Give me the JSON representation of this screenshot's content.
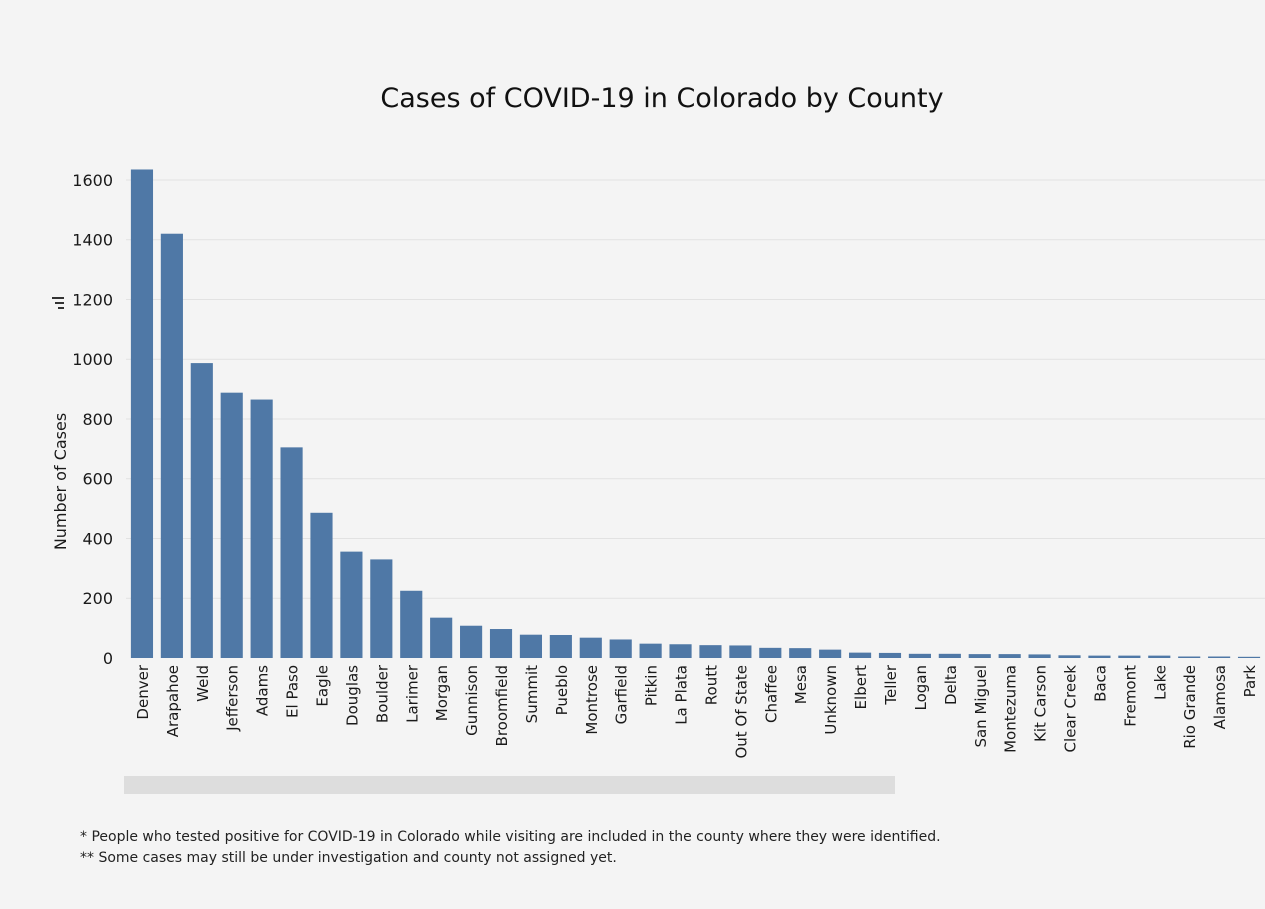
{
  "chart_data": {
    "type": "bar",
    "title": "Cases of COVID-19 in Colorado by County",
    "xlabel": "",
    "ylabel": "Number of Cases",
    "ylim": [
      0,
      1650
    ],
    "yticks": [
      0,
      200,
      400,
      600,
      800,
      1000,
      1200,
      1400,
      1600
    ],
    "grid": true,
    "bar_color": "#4f78a6",
    "categories": [
      "Denver",
      "Arapahoe",
      "Weld",
      "Jefferson",
      "Adams",
      "El Paso",
      "Eagle",
      "Douglas",
      "Boulder",
      "Larimer",
      "Morgan",
      "Gunnison",
      "Broomfield",
      "Summit",
      "Pueblo",
      "Montrose",
      "Garfield",
      "Pitkin",
      "La Plata",
      "Routt",
      "Out Of State",
      "Chaffee",
      "Mesa",
      "Unknown",
      "Elbert",
      "Teller",
      "Logan",
      "Delta",
      "San Miguel",
      "Montezuma",
      "Kit Carson",
      "Clear Creek",
      "Baca",
      "Fremont",
      "Lake",
      "Rio Grande",
      "Alamosa",
      "Park"
    ],
    "values": [
      1635,
      1420,
      987,
      888,
      865,
      705,
      486,
      356,
      330,
      225,
      135,
      108,
      97,
      78,
      77,
      68,
      62,
      48,
      46,
      43,
      42,
      34,
      33,
      28,
      18,
      17,
      14,
      14,
      13,
      13,
      12,
      9,
      8,
      8,
      8,
      5,
      5,
      4
    ]
  },
  "footnotes": {
    "note1": "* People who tested positive for COVID-19 in Colorado while visiting are included in the county where they were identified.",
    "note2": "** Some cases may still be under investigation and county not assigned yet."
  },
  "scrollbar": {
    "color": "#dddddd"
  }
}
